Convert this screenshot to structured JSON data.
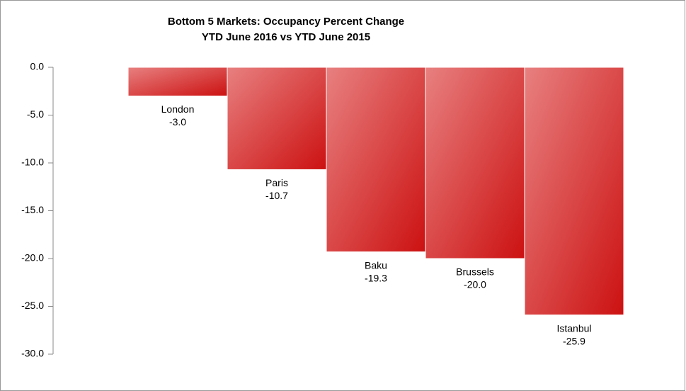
{
  "chart_data": {
    "type": "bar",
    "title": "Bottom 5 Markets: Occupancy Percent Change",
    "subtitle": "YTD June 2016 vs YTD June 2015",
    "categories": [
      "London",
      "Paris",
      "Baku",
      "Brussels",
      "Istanbul"
    ],
    "values": [
      -3.0,
      -10.7,
      -19.3,
      -20.0,
      -25.9
    ],
    "value_labels": [
      "-3.0",
      "-10.7",
      "-19.3",
      "-20.0",
      "-25.9"
    ],
    "color": "#cc1111",
    "ylim": [
      -30,
      0
    ],
    "yticks": [
      {
        "value": 0,
        "label": "0.0"
      },
      {
        "value": -5,
        "label": "-5.0"
      },
      {
        "value": -10,
        "label": "-10.0"
      },
      {
        "value": -15,
        "label": "-15.0"
      },
      {
        "value": -20,
        "label": "-20.0"
      },
      {
        "value": -25,
        "label": "-25.0"
      },
      {
        "value": -30,
        "label": "-30.0"
      }
    ],
    "grid": false
  }
}
